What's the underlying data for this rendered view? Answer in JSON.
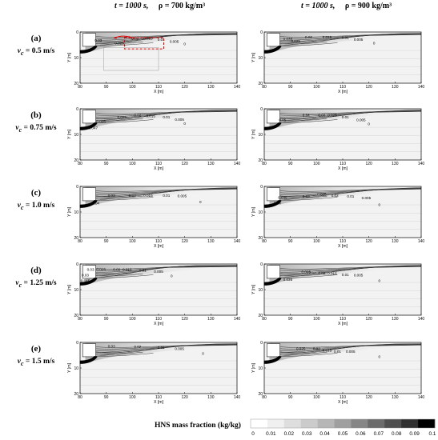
{
  "headers": [
    {
      "t": "t = 1000 s,",
      "rho": "ρ = 700 kg/m³"
    },
    {
      "t": "t = 1000 s,",
      "rho": "ρ = 900 kg/m³"
    }
  ],
  "rows": [
    {
      "label": "(a)",
      "vc_prefix": "v",
      "vc_sub": "c",
      "vc_value": "= 0.5 m/s"
    },
    {
      "label": "(b)",
      "vc_prefix": "v",
      "vc_sub": "c",
      "vc_value": "= 0.75 m/s"
    },
    {
      "label": "(c)",
      "vc_prefix": "v",
      "vc_sub": "c",
      "vc_value": "= 1.0 m/s"
    },
    {
      "label": "(d)",
      "vc_prefix": "v",
      "vc_sub": "c",
      "vc_value": "= 1.25 m/s"
    },
    {
      "label": "(e)",
      "vc_prefix": "v",
      "vc_sub": "c",
      "vc_value": "= 1.5 m/s"
    }
  ],
  "colorbar": {
    "title": "HNS mass fraction (kg/kg)",
    "ticks": [
      "0",
      "0.01",
      "0.02",
      "0.03",
      "0.04",
      "0.05",
      "0.06",
      "0.07",
      "0.08",
      "0.09",
      "0.1"
    ],
    "colors": [
      "#ffffff",
      "#f0f0f0",
      "#dedede",
      "#cbcbcb",
      "#b6b6b6",
      "#9f9f9f",
      "#868686",
      "#6b6b6b",
      "#4f4f4f",
      "#303030",
      "#000000"
    ]
  },
  "chart_data": {
    "type": "heatmap",
    "xlabel": "X [m]",
    "ylabel": "Y [m]",
    "xlim": [
      80,
      140
    ],
    "ylim": [
      20,
      0
    ],
    "x_ticks": [
      "80",
      "90",
      "100",
      "110",
      "120",
      "130",
      "140"
    ],
    "y_ticks": [
      "0",
      "10",
      "20"
    ],
    "panels": [
      {
        "row": "(a)",
        "col": 0,
        "labels": [
          [
            "0.03",
            87,
            3.2
          ],
          [
            "0.025",
            95,
            4.2
          ],
          [
            "0.02",
            101,
            2.4
          ],
          [
            "0.015",
            106,
            2.4
          ],
          [
            "0.01",
            111,
            2.8
          ],
          [
            "0.005",
            116,
            3.6
          ],
          [
            "0",
            120,
            4.6
          ]
        ],
        "plume_end": 128
      },
      {
        "row": "(a)",
        "col": 1,
        "labels": [
          [
            "0.035",
            89,
            2.6
          ],
          [
            "0.025",
            92,
            3.4
          ],
          [
            "0.02",
            97,
            1.8
          ],
          [
            "0.015",
            104,
            1.8
          ],
          [
            "0.01",
            111,
            2.0
          ],
          [
            "0.005",
            116,
            2.8
          ],
          [
            "0",
            122,
            4.2
          ]
        ],
        "plume_end": 132
      },
      {
        "row": "(b)",
        "col": 0,
        "labels": [
          [
            "0.025",
            88,
            4.8
          ],
          [
            "0.047",
            85,
            7.4
          ],
          [
            "0.025",
            96,
            3.2
          ],
          [
            "0.02",
            102,
            2.4
          ],
          [
            "0.015",
            107,
            2.6
          ],
          [
            "0.01",
            113,
            3.2
          ],
          [
            "0.005",
            118,
            4.0
          ],
          [
            "0",
            120,
            5.6
          ]
        ],
        "plume_end": 130
      },
      {
        "row": "(b)",
        "col": 1,
        "labels": [
          [
            "0.05",
            87,
            4.2
          ],
          [
            "0.04",
            96,
            2.4
          ],
          [
            "0.03",
            102,
            2.4
          ],
          [
            "0.025",
            106,
            2.4
          ],
          [
            "0.01",
            111,
            3.2
          ],
          [
            "0.005",
            117,
            4.2
          ],
          [
            "0",
            120,
            5.8
          ]
        ],
        "plume_end": 134
      },
      {
        "row": "(c)",
        "col": 0,
        "labels": [
          [
            "0.03",
            92,
            3.4
          ],
          [
            "0.02",
            100,
            3.4
          ],
          [
            "0.015",
            106,
            3.4
          ],
          [
            "0.01",
            113,
            3.4
          ],
          [
            "0.005",
            119,
            3.6
          ],
          [
            "0.04",
            86,
            6.4
          ],
          [
            "0",
            126,
            6.0
          ]
        ],
        "plume_end": 134
      },
      {
        "row": "(c)",
        "col": 1,
        "labels": [
          [
            "0.035",
            87,
            4.2
          ],
          [
            "0.03",
            96,
            3.8
          ],
          [
            "0.025",
            102,
            3.0
          ],
          [
            "0.02",
            107,
            3.4
          ],
          [
            "0.01",
            113,
            3.8
          ],
          [
            "0.005",
            119,
            4.4
          ],
          [
            "0",
            124,
            7.0
          ],
          [
            "0.04",
            85,
            6.4
          ]
        ],
        "plume_end": 136
      },
      {
        "row": "(d)",
        "col": 0,
        "labels": [
          [
            "0.03",
            84,
            2.0
          ],
          [
            "0.025",
            88,
            2.0
          ],
          [
            "0.02",
            94,
            2.0
          ],
          [
            "0.015",
            98,
            2.0
          ],
          [
            "0.01",
            104,
            2.4
          ],
          [
            "0.005",
            110,
            2.8
          ],
          [
            "0.03",
            82,
            4.2
          ],
          [
            "0.045",
            82,
            6.4
          ],
          [
            "0",
            115,
            4.6
          ]
        ],
        "plume_end": 124
      },
      {
        "row": "(d)",
        "col": 1,
        "labels": [
          [
            "0.025",
            96,
            3.0
          ],
          [
            "0.02",
            102,
            3.4
          ],
          [
            "0.015",
            106,
            3.6
          ],
          [
            "0.01",
            111,
            4.0
          ],
          [
            "0.005",
            116,
            4.2
          ],
          [
            "0.035",
            89,
            6.0
          ],
          [
            "0",
            124,
            6.4
          ]
        ],
        "plume_end": 134
      },
      {
        "row": "(e)",
        "col": 0,
        "labels": [
          [
            "0.03",
            92,
            1.4
          ],
          [
            "0.02",
            102,
            1.6
          ],
          [
            "0.01",
            111,
            1.8
          ],
          [
            "0.005",
            118,
            2.4
          ],
          [
            "0",
            127,
            4.2
          ]
        ],
        "plume_end": 132
      },
      {
        "row": "(e)",
        "col": 1,
        "labels": [
          [
            "0.025",
            94,
            2.4
          ],
          [
            "0.02",
            100,
            2.4
          ],
          [
            "0.015",
            104,
            3.0
          ],
          [
            "0.01",
            108,
            3.4
          ],
          [
            "0.005",
            113,
            3.4
          ],
          [
            "0",
            124,
            5.4
          ]
        ],
        "plume_end": 130
      }
    ]
  }
}
